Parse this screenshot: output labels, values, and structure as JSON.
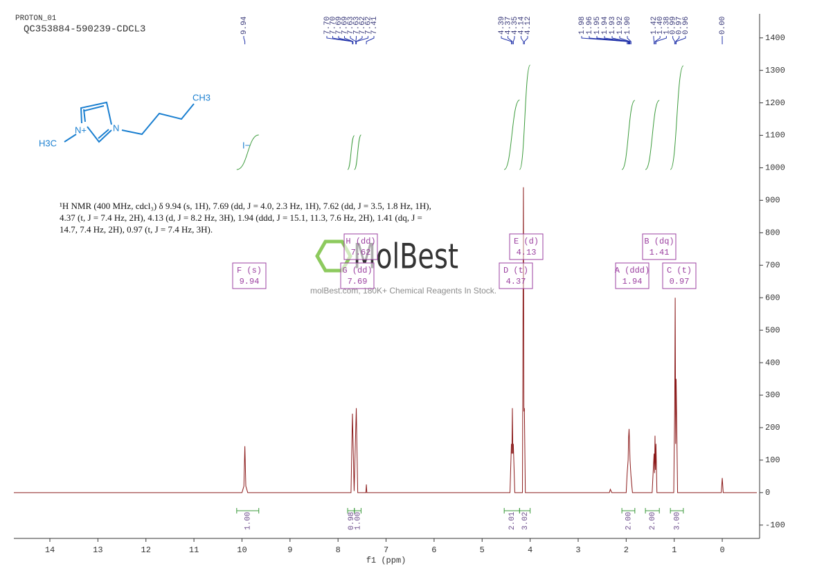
{
  "header": {
    "title": "PROTON_01",
    "sample": "QC353884-590239-CDCL3"
  },
  "structure": {
    "ch3_right": "CH3",
    "ch3_left": "H3C",
    "n_plus": "N+",
    "n": "N",
    "anion": "I−"
  },
  "description": [
    "¹H NMR (400 MHz, cdcl₃) δ 9.94 (s, 1H), 7.69 (dd, J = 4.0, 2.3 Hz, 1H), 7.62 (dd, J = 3.5, 1.8 Hz, 1H),",
    "4.37 (t, J = 7.4 Hz, 2H), 4.13 (d, J = 8.2 Hz, 3H), 1.94 (ddd, J = 15.1, 11.3, 7.6 Hz, 2H), 1.41 (dq, J =",
    "14.7, 7.4 Hz, 2H), 0.97 (t, J = 7.4 Hz, 3H)."
  ],
  "watermark": {
    "brand": "MolBest",
    "tagline": "molBest.com, 180K+ Chemical Reagents In Stock."
  },
  "chart_data": {
    "type": "line",
    "xlabel": "f1 (ppm)",
    "color": "#8b1a1a",
    "x": [
      14.75,
      10.0,
      9.96,
      9.94,
      9.92,
      9.88,
      7.73,
      7.7,
      7.665,
      7.62,
      7.59,
      7.42,
      7.41,
      7.4,
      4.42,
      4.39,
      4.38,
      4.37,
      4.36,
      4.35,
      4.32,
      4.16,
      4.14,
      4.13,
      4.12,
      4.1,
      2.35,
      2.33,
      2.3,
      2.0,
      1.98,
      1.96,
      1.95,
      1.94,
      1.93,
      1.92,
      1.9,
      1.87,
      1.46,
      1.42,
      1.41,
      1.4,
      1.39,
      1.38,
      1.36,
      1.01,
      0.99,
      0.98,
      0.97,
      0.96,
      0.93,
      0.02,
      0.0,
      -0.02,
      -0.72
    ],
    "values": [
      0,
      0,
      20,
      143,
      20,
      0,
      0,
      243,
      5,
      260,
      0,
      0,
      25,
      0,
      0,
      150,
      120,
      260,
      120,
      150,
      0,
      0,
      940,
      250,
      260,
      0,
      0,
      10,
      0,
      0,
      60,
      100,
      170,
      196,
      150,
      100,
      50,
      0,
      0,
      120,
      60,
      175,
      70,
      150,
      0,
      0,
      270,
      600,
      150,
      350,
      0,
      0,
      45,
      0,
      0
    ],
    "xlim": [
      14.75,
      -0.72
    ],
    "ylim": [
      -141,
      1474
    ],
    "xticks": [
      14,
      13,
      12,
      11,
      10,
      9,
      8,
      7,
      6,
      5,
      4,
      3,
      2,
      1,
      0
    ],
    "yticks": [
      -100,
      0,
      100,
      200,
      300,
      400,
      500,
      600,
      700,
      800,
      900,
      1000,
      1100,
      1200,
      1300,
      1400
    ],
    "peak_labels": [
      [
        9.94
      ],
      [
        {
          "value": 7.7,
          "label": "7.70"
        },
        {
          "value": 7.7,
          "label": "7.70"
        },
        7.69,
        7.69,
        7.63,
        7.63,
        7.62,
        7.62,
        7.41
      ],
      [
        4.39,
        4.37,
        4.35,
        4.14,
        4.12
      ],
      [
        1.98,
        1.96,
        1.95,
        1.94,
        1.93,
        1.92,
        {
          "value": 1.9,
          "label": "1.90"
        }
      ],
      [
        1.42,
        {
          "value": 1.4,
          "label": "1.40"
        },
        1.38,
        0.99,
        0.97,
        0.96
      ],
      [
        {
          "value": 0.0,
          "label": "0.00"
        }
      ]
    ],
    "integrals": [
      {
        "from": 10.11,
        "to": 9.65,
        "value": {
          "value": 1,
          "label": "1.00"
        }
      },
      {
        "from": 7.8,
        "to": 7.66,
        "value": 0.98
      },
      {
        "from": 7.66,
        "to": 7.52,
        "value": {
          "value": 1,
          "label": "1.00"
        }
      },
      {
        "from": 4.54,
        "to": 4.22,
        "value": 2.01
      },
      {
        "from": 4.22,
        "to": 4.0,
        "value": 3.02
      },
      {
        "from": 2.09,
        "to": 1.82,
        "value": {
          "value": 2,
          "label": "2.00"
        }
      },
      {
        "from": 1.6,
        "to": 1.31,
        "value": {
          "value": 2,
          "label": "2.00"
        }
      },
      {
        "from": 1.08,
        "to": 0.81,
        "value": {
          "value": 3,
          "label": "3.00"
        }
      }
    ],
    "multiplets": [
      {
        "label": "F (s)",
        "shift": 9.94
      },
      {
        "label": "H (dd)",
        "shift": 7.62
      },
      {
        "label": "G (dd)",
        "shift": 7.69
      },
      {
        "label": "E (d)",
        "shift": 4.13
      },
      {
        "label": "D (t)",
        "shift": 4.37
      },
      {
        "label": "B (dq)",
        "shift": 1.41
      },
      {
        "label": "A (ddd)",
        "shift": 1.94
      },
      {
        "label": "C (t)",
        "shift": 0.97
      }
    ]
  }
}
